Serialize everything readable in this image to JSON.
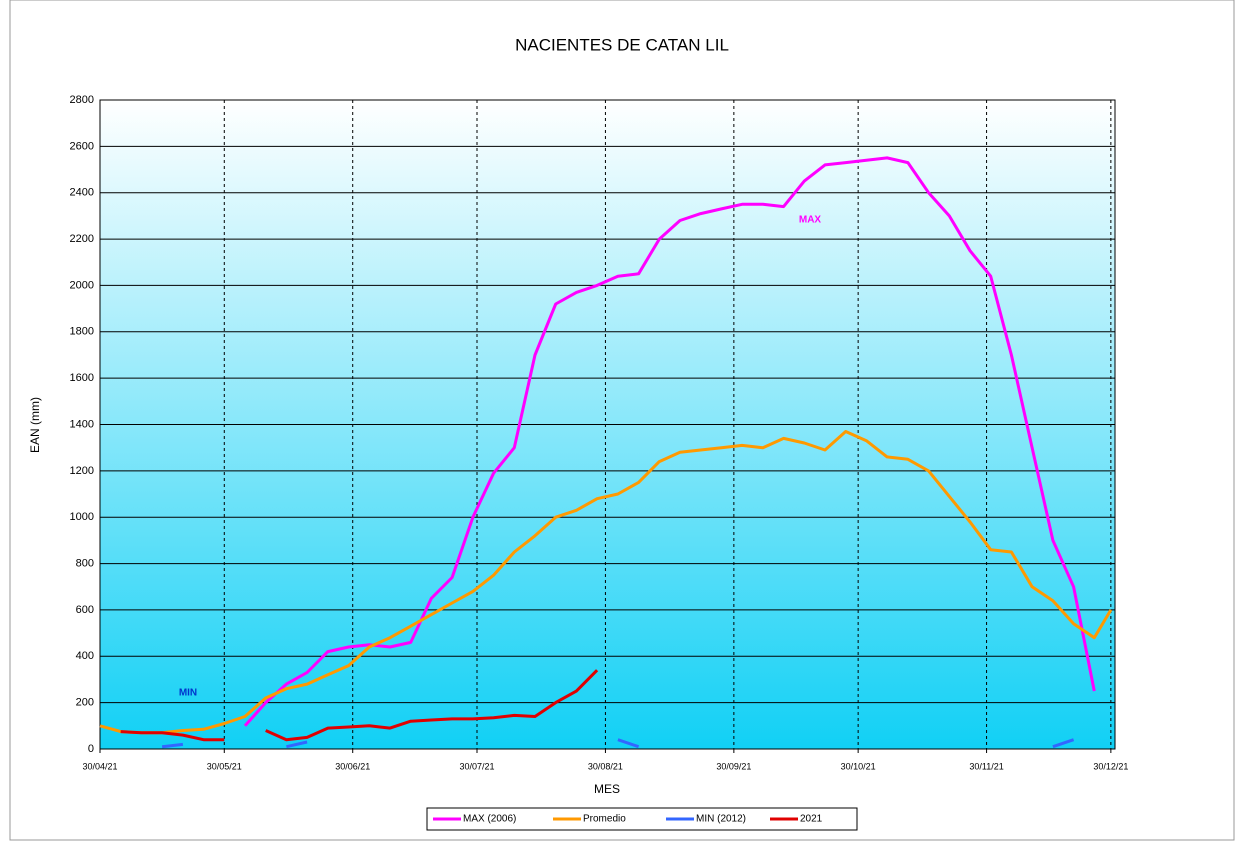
{
  "chart_data": {
    "type": "line",
    "title": "NACIENTES DE CATAN LIL",
    "xlabel": "MES",
    "ylabel": "EAN (mm)",
    "annotations": [
      "MAX",
      "MIN"
    ],
    "x": [
      "2021-04-30",
      "2021-05-05",
      "2021-05-10",
      "2021-05-15",
      "2021-05-20",
      "2021-05-25",
      "2021-05-30",
      "2021-06-04",
      "2021-06-09",
      "2021-06-14",
      "2021-06-19",
      "2021-06-24",
      "2021-06-29",
      "2021-07-04",
      "2021-07-09",
      "2021-07-14",
      "2021-07-19",
      "2021-07-24",
      "2021-07-29",
      "2021-08-03",
      "2021-08-08",
      "2021-08-13",
      "2021-08-18",
      "2021-08-23",
      "2021-08-28",
      "2021-09-02",
      "2021-09-07",
      "2021-09-12",
      "2021-09-17",
      "2021-09-22",
      "2021-09-27",
      "2021-10-02",
      "2021-10-07",
      "2021-10-12",
      "2021-10-17",
      "2021-10-22",
      "2021-10-27",
      "2021-11-01",
      "2021-11-06",
      "2021-11-11",
      "2021-11-16",
      "2021-11-21",
      "2021-11-26",
      "2021-12-01",
      "2021-12-06",
      "2021-12-11",
      "2021-12-16",
      "2021-12-21",
      "2021-12-26",
      "2021-12-30"
    ],
    "series": [
      {
        "name": "MAX (2006)",
        "color": "#ff00ff",
        "values": [
          null,
          null,
          null,
          null,
          null,
          null,
          null,
          100,
          200,
          280,
          330,
          420,
          440,
          450,
          440,
          460,
          650,
          740,
          1000,
          1190,
          1300,
          1700,
          1920,
          1970,
          2000,
          2040,
          2050,
          2200,
          2280,
          2310,
          2330,
          2350,
          2350,
          2340,
          2450,
          2520,
          2530,
          2540,
          2550,
          2530,
          2400,
          2300,
          2150,
          2040,
          1700,
          1300,
          900,
          700,
          250,
          null
        ]
      },
      {
        "name": "Promedio",
        "color": "#ff9900",
        "values": [
          100,
          75,
          70,
          70,
          80,
          85,
          110,
          140,
          220,
          260,
          280,
          320,
          360,
          440,
          480,
          530,
          580,
          630,
          680,
          750,
          850,
          920,
          1000,
          1030,
          1080,
          1100,
          1150,
          1240,
          1280,
          1290,
          1300,
          1310,
          1300,
          1340,
          1320,
          1290,
          1370,
          1330,
          1260,
          1250,
          1200,
          1090,
          980,
          860,
          850,
          700,
          640,
          540,
          480,
          600
        ]
      },
      {
        "name": "MIN (2012)",
        "color": "#3366ff",
        "values": [
          null,
          null,
          null,
          10,
          20,
          null,
          null,
          null,
          null,
          10,
          30,
          null,
          null,
          null,
          null,
          null,
          null,
          null,
          null,
          null,
          null,
          null,
          null,
          null,
          null,
          40,
          10,
          null,
          null,
          null,
          null,
          null,
          null,
          null,
          null,
          null,
          null,
          null,
          null,
          null,
          null,
          null,
          null,
          null,
          null,
          null,
          10,
          40,
          null,
          null
        ]
      },
      {
        "name": "2021",
        "color": "#e00000",
        "values": [
          null,
          75,
          70,
          70,
          60,
          40,
          40,
          null,
          80,
          40,
          50,
          90,
          95,
          100,
          90,
          120,
          125,
          130,
          130,
          135,
          145,
          140,
          200,
          250,
          340,
          null,
          null,
          null,
          null,
          null,
          null,
          null,
          null,
          null,
          null,
          null,
          null,
          null,
          null,
          null,
          null,
          null,
          null,
          null,
          null,
          null,
          null,
          null,
          null,
          null
        ]
      }
    ],
    "xlim": [
      "2021-04-30",
      "2021-12-31"
    ],
    "xticks": [
      {
        "value": "2021-04-30",
        "label": "30/04/21"
      },
      {
        "value": "2021-05-30",
        "label": "30/05/21"
      },
      {
        "value": "2021-06-30",
        "label": "30/06/21"
      },
      {
        "value": "2021-07-30",
        "label": "30/07/21"
      },
      {
        "value": "2021-08-30",
        "label": "30/08/21"
      },
      {
        "value": "2021-09-30",
        "label": "30/09/21"
      },
      {
        "value": "2021-10-30",
        "label": "30/10/21"
      },
      {
        "value": "2021-11-30",
        "label": "30/11/21"
      },
      {
        "value": "2021-12-30",
        "label": "30/12/21"
      }
    ],
    "ylim": [
      0,
      2800
    ],
    "yticks": [
      0,
      200,
      400,
      600,
      800,
      1000,
      1200,
      1400,
      1600,
      1800,
      2000,
      2200,
      2400,
      2600,
      2800
    ],
    "grid": true,
    "legend": "bottom"
  }
}
